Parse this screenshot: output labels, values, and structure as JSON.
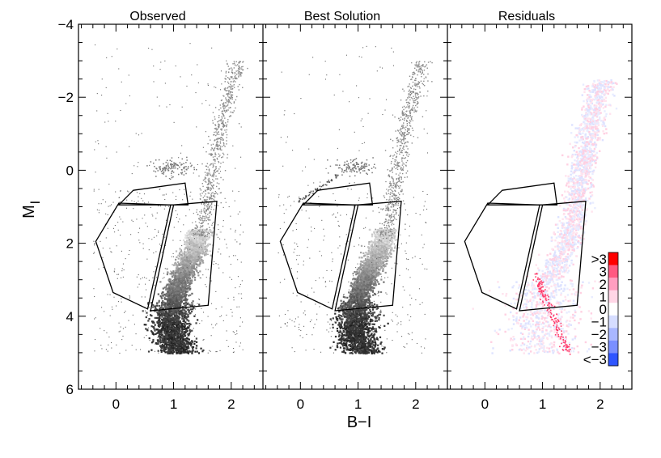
{
  "chart_data": {
    "type": "scatter",
    "shared_axes": {
      "xlabel": "B−I",
      "ylabel_main": "M",
      "ylabel_sub": "I",
      "xlim": [
        -0.65,
        2.55
      ],
      "ylim": [
        6,
        -4
      ],
      "x_ticks": [
        "0",
        "1",
        "2"
      ],
      "y_ticks": [
        "−4",
        "−2",
        "0",
        "2",
        "4",
        "6"
      ],
      "grid": false
    },
    "panels": [
      {
        "title": "Observed",
        "style": "gray-density"
      },
      {
        "title": "Best Solution",
        "style": "gray-density"
      },
      {
        "title": "Residuals",
        "style": "residual-colormap"
      }
    ],
    "bundles": [
      {
        "name": "upper",
        "polygon": [
          [
            0.3,
            0.55
          ],
          [
            1.2,
            0.35
          ],
          [
            1.25,
            0.95
          ],
          [
            0.05,
            0.95
          ]
        ]
      },
      {
        "name": "left",
        "polygon": [
          [
            0.05,
            0.9
          ],
          [
            0.95,
            0.95
          ],
          [
            0.55,
            3.8
          ],
          [
            -0.05,
            3.35
          ],
          [
            -0.35,
            1.95
          ]
        ]
      },
      {
        "name": "right",
        "polygon": [
          [
            1.0,
            0.95
          ],
          [
            1.75,
            0.85
          ],
          [
            1.6,
            3.7
          ],
          [
            0.6,
            3.85
          ]
        ]
      }
    ],
    "density_track": {
      "note": "Hess-diagram sequence shown in grayscale",
      "spine": [
        [
          1.05,
          5.0
        ],
        [
          0.95,
          4.4
        ],
        [
          0.95,
          3.8
        ],
        [
          1.1,
          3.0
        ],
        [
          1.35,
          2.2
        ],
        [
          1.55,
          1.2
        ],
        [
          1.65,
          0.2
        ],
        [
          1.85,
          -1.5
        ],
        [
          2.1,
          -3.0
        ]
      ],
      "red_clump": [
        0.95,
        -0.1
      ]
    },
    "colorbar": {
      "labels": [
        ">3",
        "3",
        "2",
        "1",
        "0",
        "−1",
        "−2",
        "−3",
        "<−3"
      ],
      "colors": [
        "#ff0000",
        "#ff5a82",
        "#ff9ec0",
        "#ffd6e6",
        "#ffffff",
        "#d6ddff",
        "#a9b7ff",
        "#7a8fff",
        "#2f55ff"
      ]
    }
  }
}
